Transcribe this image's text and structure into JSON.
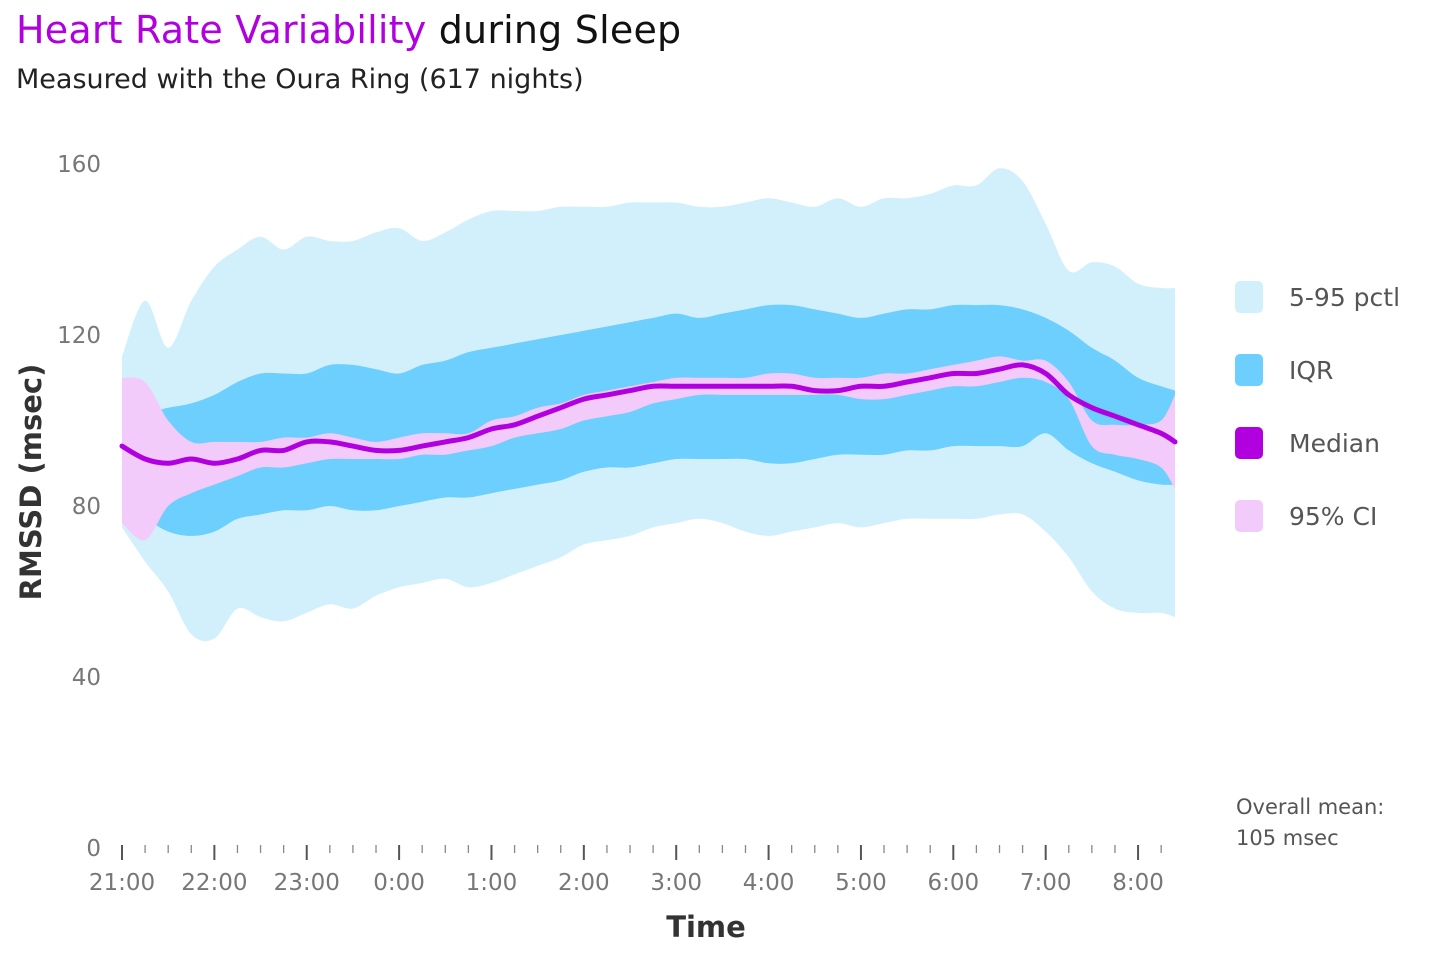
{
  "header": {
    "title_highlight": "Heart Rate Variability",
    "title_rest": " during Sleep",
    "subtitle": "Measured with the Oura Ring (617 nights)"
  },
  "annotation": {
    "line1": "Overall mean:",
    "line2": "105 msec"
  },
  "colors": {
    "p5_95": "#d2f0fc",
    "iqr": "#6ccffd",
    "median": "#b000e0",
    "ci": "#f3cbfb",
    "title_highlight": "#b000e0"
  },
  "chart_data": {
    "type": "area",
    "title": "Heart Rate Variability during Sleep",
    "subtitle": "Measured with the Oura Ring (617 nights)",
    "xlabel": "Time",
    "ylabel": "RMSSD (msec)",
    "ylim": [
      0,
      160
    ],
    "yticks": [
      0,
      40,
      80,
      120,
      160
    ],
    "x_tick_labels": [
      "21:00",
      "22:00",
      "23:00",
      "0:00",
      "1:00",
      "2:00",
      "3:00",
      "4:00",
      "5:00",
      "6:00",
      "7:00",
      "8:00"
    ],
    "x_tick_hours": [
      0,
      1,
      2,
      3,
      4,
      5,
      6,
      7,
      8,
      9,
      10,
      11
    ],
    "xlim_hours_after_21": [
      0,
      11.4
    ],
    "minor_tick_minutes": 15,
    "grid": false,
    "legend_position": "right",
    "legend": [
      "5-95 pctl",
      "IQR",
      "Median",
      "95% CI"
    ],
    "x_hours_after_21": [
      0,
      0.25,
      0.5,
      0.75,
      1,
      1.25,
      1.5,
      1.75,
      2,
      2.25,
      2.5,
      2.75,
      3,
      3.25,
      3.5,
      3.75,
      4,
      4.25,
      4.5,
      4.75,
      5,
      5.25,
      5.5,
      5.75,
      6,
      6.25,
      6.5,
      6.75,
      7,
      7.25,
      7.5,
      7.75,
      8,
      8.25,
      8.5,
      8.75,
      9,
      9.25,
      9.5,
      9.75,
      10,
      10.25,
      10.5,
      10.75,
      11,
      11.25,
      11.4
    ],
    "series": [
      {
        "name": "5-95 pctl",
        "kind": "band",
        "lower": [
          75,
          67,
          60,
          50,
          49,
          56,
          54,
          53,
          55,
          57,
          56,
          59,
          61,
          62,
          63,
          61,
          62,
          64,
          66,
          68,
          71,
          72,
          73,
          75,
          76,
          77,
          76,
          74,
          73,
          74,
          75,
          76,
          75,
          76,
          77,
          77,
          77,
          77,
          78,
          78,
          74,
          68,
          60,
          56,
          55,
          55,
          54
        ],
        "upper": [
          115,
          128,
          117,
          128,
          136,
          140,
          143,
          140,
          143,
          142,
          142,
          144,
          145,
          142,
          144,
          147,
          149,
          149,
          149,
          150,
          150,
          150,
          151,
          151,
          151,
          150,
          150,
          151,
          152,
          151,
          150,
          152,
          150,
          152,
          152,
          153,
          155,
          155,
          159,
          156,
          146,
          135,
          137,
          136,
          132,
          131,
          131
        ]
      },
      {
        "name": "IQR",
        "kind": "band",
        "lower": [
          79,
          77,
          74,
          73,
          74,
          77,
          78,
          79,
          79,
          80,
          79,
          79,
          80,
          81,
          82,
          82,
          83,
          84,
          85,
          86,
          88,
          89,
          89,
          90,
          91,
          91,
          91,
          91,
          90,
          90,
          91,
          92,
          92,
          92,
          93,
          93,
          94,
          94,
          94,
          94,
          97,
          93,
          90,
          88,
          86,
          85,
          85
        ],
        "upper": [
          104,
          102,
          103,
          104,
          106,
          109,
          111,
          111,
          111,
          113,
          113,
          112,
          111,
          113,
          114,
          116,
          117,
          118,
          119,
          120,
          121,
          122,
          123,
          124,
          125,
          124,
          125,
          126,
          127,
          127,
          126,
          125,
          124,
          125,
          126,
          126,
          127,
          127,
          127,
          126,
          124,
          121,
          117,
          114,
          110,
          108,
          107
        ]
      },
      {
        "name": "95% CI",
        "kind": "band",
        "lower": [
          76,
          72,
          80,
          83,
          85,
          87,
          89,
          89,
          90,
          91,
          91,
          91,
          91,
          92,
          92,
          93,
          94,
          96,
          97,
          98,
          100,
          101,
          102,
          104,
          105,
          106,
          106,
          106,
          106,
          106,
          106,
          106,
          105,
          105,
          106,
          107,
          108,
          108,
          109,
          110,
          109,
          105,
          94,
          92,
          91,
          89,
          84
        ],
        "upper": [
          110,
          109,
          100,
          95,
          95,
          95,
          95,
          96,
          96,
          97,
          96,
          95,
          96,
          97,
          97,
          97,
          100,
          101,
          103,
          104,
          106,
          107,
          108,
          109,
          110,
          110,
          110,
          110,
          111,
          111,
          110,
          110,
          110,
          111,
          111,
          112,
          113,
          114,
          115,
          114,
          114,
          109,
          100,
          99,
          99,
          100,
          106
        ]
      },
      {
        "name": "Median",
        "kind": "line",
        "values": [
          94,
          91,
          90,
          91,
          90,
          91,
          93,
          93,
          95,
          95,
          94,
          93,
          93,
          94,
          95,
          96,
          98,
          99,
          101,
          103,
          105,
          106,
          107,
          108,
          108,
          108,
          108,
          108,
          108,
          108,
          107,
          107,
          108,
          108,
          109,
          110,
          111,
          111,
          112,
          113,
          111,
          106,
          103,
          101,
          99,
          97,
          95
        ]
      }
    ]
  }
}
